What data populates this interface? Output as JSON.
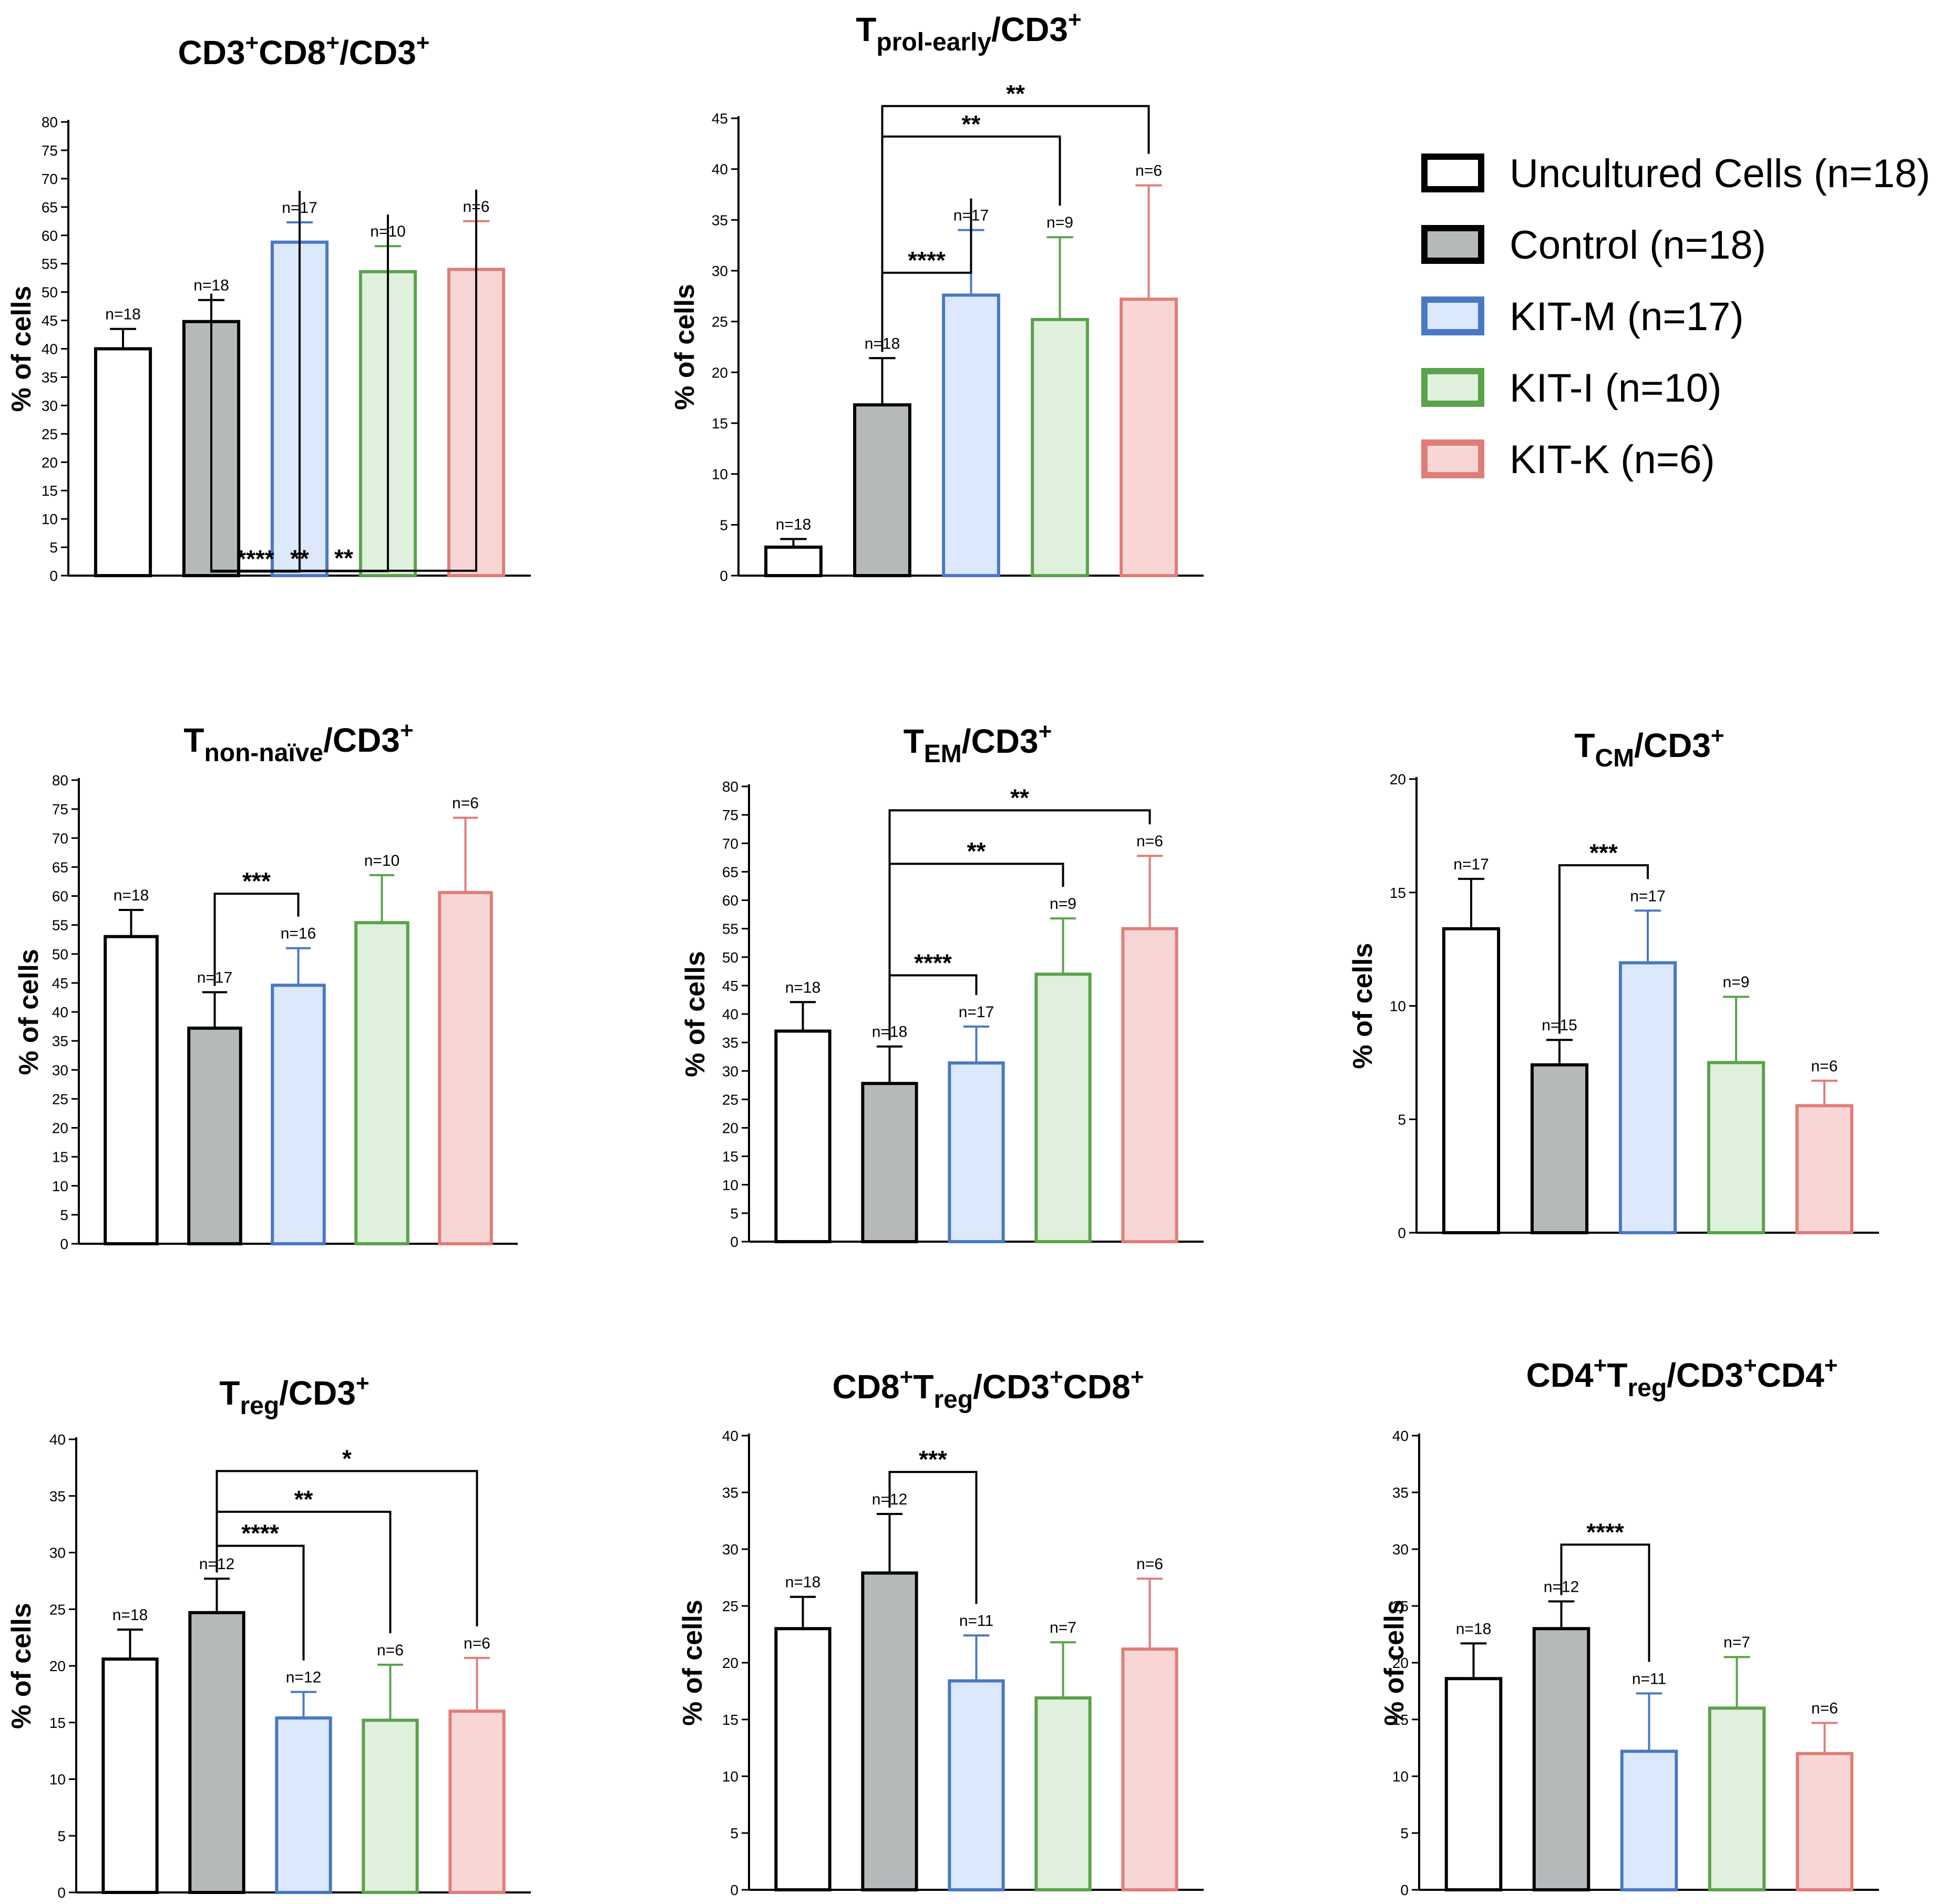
{
  "colors": {
    "Uncultured Cells": {
      "fill": "#ffffff",
      "stroke": "#000000"
    },
    "Control": {
      "fill": "#b6b9ba",
      "stroke": "#000000"
    },
    "KIT-M": {
      "fill": "#dce8fb",
      "stroke": "#4a78c4"
    },
    "KIT-I": {
      "fill": "#dff0dc",
      "stroke": "#5aa24c"
    },
    "KIT-K": {
      "fill": "#f8d6d6",
      "stroke": "#e07d78"
    }
  },
  "legend": [
    {
      "group": "Uncultured Cells",
      "label": "Uncultured Cells (n=18)"
    },
    {
      "group": "Control",
      "label": "Control (n=18)"
    },
    {
      "group": "KIT-M",
      "label": "KIT-M (n=17)"
    },
    {
      "group": "KIT-I",
      "label": "KIT-I (n=10)"
    },
    {
      "group": "KIT-K",
      "label": "KIT-K (n=6)"
    }
  ],
  "chart_data": [
    {
      "type": "bar",
      "title_parts": [
        {
          "t": "CD3"
        },
        {
          "t": "+",
          "s": "sup"
        },
        {
          "t": "CD8"
        },
        {
          "t": "+",
          "s": "sup"
        },
        {
          "t": "/CD3"
        },
        {
          "t": "+",
          "s": "sup"
        }
      ],
      "ylabel": "% of cells",
      "ylim": [
        0,
        80
      ],
      "yticks": [
        0,
        5,
        10,
        15,
        20,
        25,
        30,
        35,
        40,
        45,
        50,
        55,
        60,
        65,
        70,
        75,
        80
      ],
      "categories": [
        "Uncultured Cells",
        "Control",
        "KIT-M",
        "KIT-I",
        "KIT-K"
      ],
      "values": [
        40,
        44.8,
        58.8,
        53.6,
        54
      ],
      "errors": [
        3.5,
        3.8,
        3.5,
        4.5,
        8.5
      ],
      "n_labels": [
        "n=18",
        "n=18",
        "n=17",
        "n=10",
        "n=6"
      ],
      "significance": [
        {
          "from": 1,
          "to": 2,
          "level": 0.72,
          "label": "****"
        },
        {
          "from": 1,
          "to": 3,
          "level": 0.79,
          "label": "**"
        },
        {
          "from": 1,
          "to": 4,
          "level": 0.86,
          "label": "**"
        }
      ]
    },
    {
      "type": "bar",
      "title_parts": [
        {
          "t": "T"
        },
        {
          "t": "prol-early",
          "s": "sub"
        },
        {
          "t": "/CD3"
        },
        {
          "t": "+",
          "s": "sup"
        }
      ],
      "ylabel": "% of cells",
      "ylim": [
        0,
        45
      ],
      "yticks": [
        0,
        5,
        10,
        15,
        20,
        25,
        30,
        35,
        40,
        45
      ],
      "categories": [
        "Uncultured Cells",
        "Control",
        "KIT-M",
        "KIT-I",
        "KIT-K"
      ],
      "values": [
        2.8,
        16.8,
        27.6,
        25.2,
        27.2
      ],
      "errors": [
        0.8,
        4.6,
        6.4,
        8.1,
        11.2
      ],
      "n_labels": [
        "n=18",
        "n=18",
        "n=17",
        "n=9",
        "n=6"
      ],
      "significance": [
        {
          "from": 1,
          "to": 2,
          "level": 29.8,
          "label": "****"
        },
        {
          "from": 1,
          "to": 3,
          "level": 43.2,
          "label": "**"
        },
        {
          "from": 1,
          "to": 4,
          "level": 46.2,
          "label": "**"
        }
      ]
    },
    {
      "type": "bar",
      "title_parts": [
        {
          "t": "T"
        },
        {
          "t": "non-naïve",
          "s": "sub"
        },
        {
          "t": "/CD3"
        },
        {
          "t": "+",
          "s": "sup"
        }
      ],
      "ylabel": "% of cells",
      "ylim": [
        0,
        80
      ],
      "yticks": [
        0,
        5,
        10,
        15,
        20,
        25,
        30,
        35,
        40,
        45,
        50,
        55,
        60,
        65,
        70,
        75,
        80
      ],
      "categories": [
        "Uncultured Cells",
        "Control",
        "KIT-M",
        "KIT-I",
        "KIT-K"
      ],
      "values": [
        53,
        37.2,
        44.6,
        55.4,
        60.6
      ],
      "errors": [
        4.6,
        6.2,
        6.4,
        8.2,
        12.9
      ],
      "n_labels": [
        "n=18",
        "n=17",
        "n=16",
        "n=10",
        "n=6"
      ],
      "significance": [
        {
          "from": 1,
          "to": 2,
          "level": 60.4,
          "label": "***"
        }
      ]
    },
    {
      "type": "bar",
      "title_parts": [
        {
          "t": "T"
        },
        {
          "t": "EM",
          "s": "sub"
        },
        {
          "t": "/CD3"
        },
        {
          "t": "+",
          "s": "sup"
        }
      ],
      "ylabel": "% of cells",
      "ylim": [
        0,
        80
      ],
      "yticks": [
        0,
        5,
        10,
        15,
        20,
        25,
        30,
        35,
        40,
        45,
        50,
        55,
        60,
        65,
        70,
        75,
        80
      ],
      "categories": [
        "Uncultured Cells",
        "Control",
        "KIT-M",
        "KIT-I",
        "KIT-K"
      ],
      "values": [
        37,
        27.8,
        31.4,
        47,
        55
      ],
      "errors": [
        5.1,
        6.5,
        6.4,
        9.8,
        12.8
      ],
      "n_labels": [
        "n=18",
        "n=18",
        "n=17",
        "n=9",
        "n=6"
      ],
      "significance": [
        {
          "from": 1,
          "to": 2,
          "level": 46.8,
          "label": "****"
        },
        {
          "from": 1,
          "to": 3,
          "level": 66.4,
          "label": "**"
        },
        {
          "from": 1,
          "to": 4,
          "level": 75.8,
          "label": "**"
        }
      ]
    },
    {
      "type": "bar",
      "title_parts": [
        {
          "t": "T"
        },
        {
          "t": "CM",
          "s": "sub"
        },
        {
          "t": "/CD3"
        },
        {
          "t": "+",
          "s": "sup"
        }
      ],
      "ylabel": "% of cells",
      "ylim": [
        0,
        20
      ],
      "yticks": [
        0,
        5,
        10,
        15,
        20
      ],
      "categories": [
        "Uncultured Cells",
        "Control",
        "KIT-M",
        "KIT-I",
        "KIT-K"
      ],
      "values": [
        13.4,
        7.4,
        11.9,
        7.5,
        5.6
      ],
      "errors": [
        2.2,
        1.1,
        2.3,
        2.9,
        1.1
      ],
      "n_labels": [
        "n=17",
        "n=15",
        "n=17",
        "n=9",
        "n=6"
      ],
      "significance": [
        {
          "from": 1,
          "to": 2,
          "level": 16.2,
          "label": "***"
        }
      ]
    },
    {
      "type": "bar",
      "title_parts": [
        {
          "t": "T"
        },
        {
          "t": "reg",
          "s": "sub"
        },
        {
          "t": "/CD3"
        },
        {
          "t": "+",
          "s": "sup"
        }
      ],
      "ylabel": "% of cells",
      "ylim": [
        0,
        40
      ],
      "yticks": [
        0,
        5,
        10,
        15,
        20,
        25,
        30,
        35,
        40
      ],
      "categories": [
        "Uncultured Cells",
        "Control",
        "KIT-M",
        "KIT-I",
        "KIT-K"
      ],
      "values": [
        20.6,
        24.7,
        15.4,
        15.2,
        16
      ],
      "errors": [
        2.6,
        3,
        2.3,
        4.9,
        4.7
      ],
      "n_labels": [
        "n=18",
        "n=12",
        "n=12",
        "n=6",
        "n=6"
      ],
      "significance": [
        {
          "from": 1,
          "to": 2,
          "level": 30.6,
          "label": "****"
        },
        {
          "from": 1,
          "to": 3,
          "level": 33.6,
          "label": "**"
        },
        {
          "from": 1,
          "to": 4,
          "level": 37.2,
          "label": "*"
        }
      ]
    },
    {
      "type": "bar",
      "title_parts": [
        {
          "t": "CD8"
        },
        {
          "t": "+",
          "s": "sup"
        },
        {
          "t": "T"
        },
        {
          "t": "reg",
          "s": "sub"
        },
        {
          "t": "/CD3"
        },
        {
          "t": "+",
          "s": "sup"
        },
        {
          "t": "CD8"
        },
        {
          "t": "+",
          "s": "sup"
        }
      ],
      "ylabel": "% of cells",
      "ylim": [
        0,
        40
      ],
      "yticks": [
        0,
        5,
        10,
        15,
        20,
        25,
        30,
        35,
        40
      ],
      "categories": [
        "Uncultured Cells",
        "Control",
        "KIT-M",
        "KIT-I",
        "KIT-K"
      ],
      "values": [
        23,
        27.9,
        18.4,
        16.9,
        21.2
      ],
      "errors": [
        2.8,
        5.2,
        4,
        4.9,
        6.2
      ],
      "n_labels": [
        "n=18",
        "n=12",
        "n=11",
        "n=7",
        "n=6"
      ],
      "significance": [
        {
          "from": 1,
          "to": 2,
          "level": 36.8,
          "label": "***"
        }
      ]
    },
    {
      "type": "bar",
      "title_parts": [
        {
          "t": "CD4"
        },
        {
          "t": "+",
          "s": "sup"
        },
        {
          "t": "T"
        },
        {
          "t": "reg",
          "s": "sub"
        },
        {
          "t": "/CD3"
        },
        {
          "t": "+",
          "s": "sup"
        },
        {
          "t": "CD4"
        },
        {
          "t": "+",
          "s": "sup"
        }
      ],
      "ylabel": "% of cells",
      "ylim": [
        0,
        40
      ],
      "yticks": [
        0,
        5,
        10,
        15,
        20,
        25,
        30,
        35,
        40
      ],
      "categories": [
        "Uncultured Cells",
        "Control",
        "KIT-M",
        "KIT-I",
        "KIT-K"
      ],
      "values": [
        18.6,
        23,
        12.2,
        16,
        12
      ],
      "errors": [
        3.1,
        2.4,
        5.1,
        4.5,
        2.7
      ],
      "n_labels": [
        "n=18",
        "n=12",
        "n=11",
        "n=7",
        "n=6"
      ],
      "significance": [
        {
          "from": 1,
          "to": 2,
          "level": 30.4,
          "label": "****"
        }
      ]
    }
  ]
}
